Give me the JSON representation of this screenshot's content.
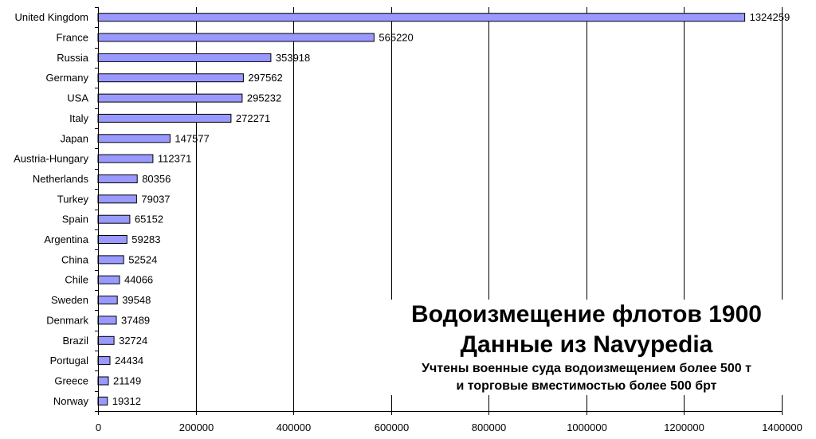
{
  "chart_data": {
    "type": "bar",
    "orientation": "horizontal",
    "title": "Водоизмещение флотов 1900",
    "subtitle": "Данные из Navypedia",
    "notes": [
      "Учтены военные суда водоизмещением более 500 т",
      "и торговые вместимостью более 500 брт"
    ],
    "categories": [
      "United Kingdom",
      "France",
      "Russia",
      "Germany",
      "USA",
      "Italy",
      "Japan",
      "Austria-Hungary",
      "Netherlands",
      "Turkey",
      "Spain",
      "Argentina",
      "China",
      "Chile",
      "Sweden",
      "Denmark",
      "Brazil",
      "Portugal",
      "Greece",
      "Norway"
    ],
    "values": [
      1324259,
      565220,
      353918,
      297562,
      295232,
      272271,
      147577,
      112371,
      80356,
      79037,
      65152,
      59283,
      52524,
      44066,
      39548,
      37489,
      32724,
      24434,
      21149,
      19312
    ],
    "xlim": [
      0,
      1400000
    ],
    "xticks": [
      "0",
      "200000",
      "400000",
      "600000",
      "800000",
      "1000000",
      "1200000",
      "1400000"
    ],
    "xtick_values": [
      0,
      200000,
      400000,
      600000,
      800000,
      1000000,
      1200000,
      1400000
    ],
    "grid": true,
    "bar_color": "#9999ff",
    "bar_edge_color": "#000000"
  }
}
